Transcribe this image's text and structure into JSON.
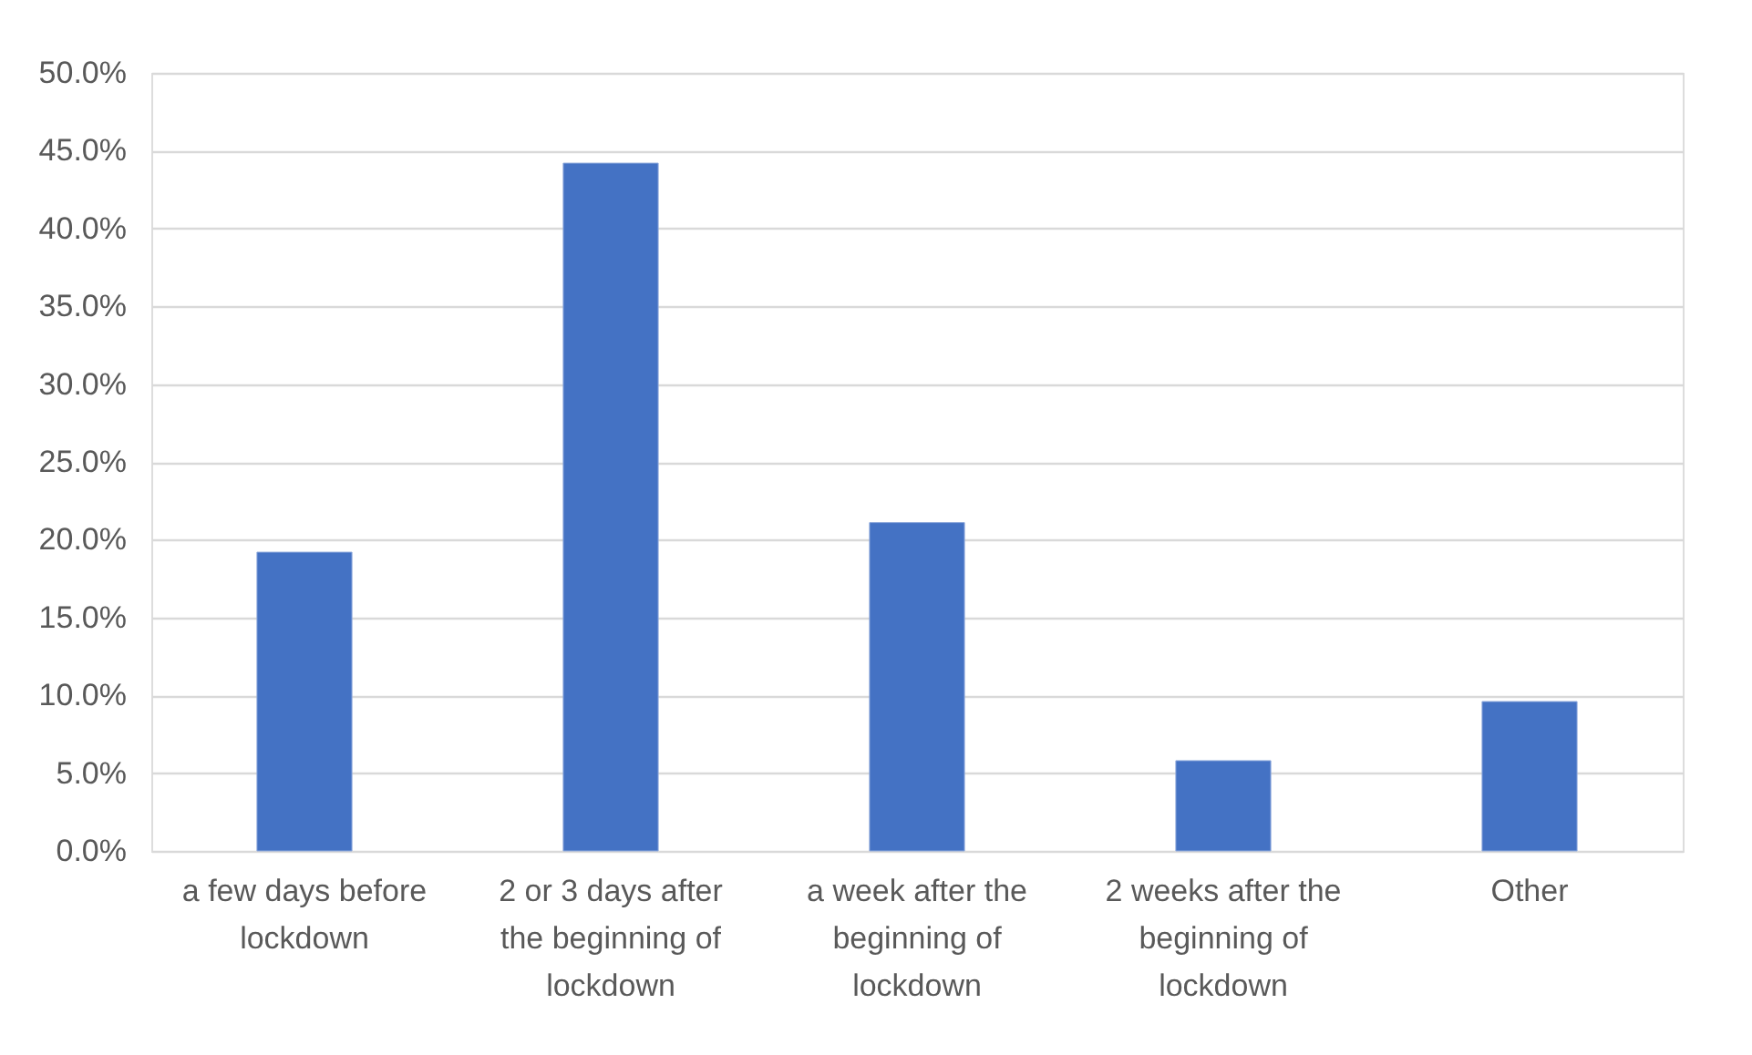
{
  "chart_data": {
    "type": "bar",
    "categories": [
      "a few days before lockdown",
      "2 or 3 days after the beginning of lockdown",
      "a week after the beginning of lockdown",
      "2 weeks after the beginning of lockdown",
      "Other"
    ],
    "values": [
      19.2,
      44.2,
      21.1,
      5.8,
      9.6
    ],
    "color": "#4472c4",
    "ylim": [
      0,
      50
    ],
    "yticks": [
      {
        "value": 0,
        "label": "0.0%"
      },
      {
        "value": 5,
        "label": "5.0%"
      },
      {
        "value": 10,
        "label": "10.0%"
      },
      {
        "value": 15,
        "label": "15.0%"
      },
      {
        "value": 20,
        "label": "20.0%"
      },
      {
        "value": 25,
        "label": "25.0%"
      },
      {
        "value": 30,
        "label": "30.0%"
      },
      {
        "value": 35,
        "label": "35.0%"
      },
      {
        "value": 40,
        "label": "40.0%"
      },
      {
        "value": 45,
        "label": "45.0%"
      },
      {
        "value": 50,
        "label": "50.0%"
      }
    ],
    "grid": "y"
  }
}
